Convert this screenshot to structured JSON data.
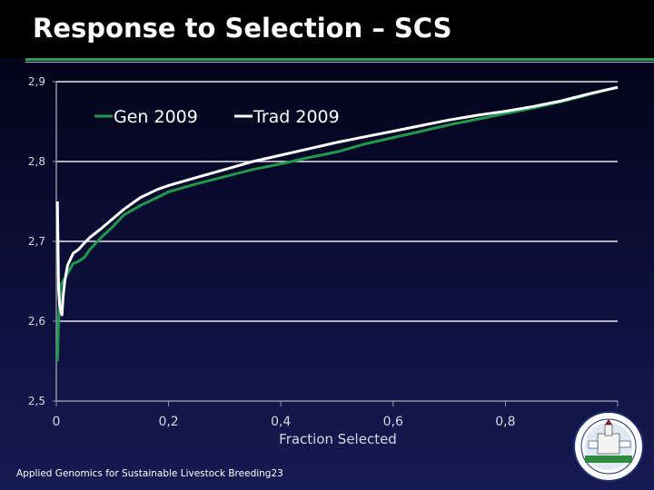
{
  "slide": {
    "title": "Response to Selection – SCS",
    "footer": "Applied Genomics for Sustainable Livestock Breeding",
    "page_number": "23"
  },
  "colors": {
    "gen": "#1f9a4c",
    "trad": "#ffffff",
    "axis": "#8f95a6",
    "grid": "#e6e8ee",
    "tick_text": "#d6d9e0",
    "accent": "#2e9e55"
  },
  "chart_data": {
    "type": "line",
    "title": "",
    "xlabel": "Fraction Selected",
    "ylabel": "",
    "xlim": [
      0,
      1
    ],
    "ylim": [
      2.5,
      2.9
    ],
    "x_ticks": [
      "0",
      "0,2",
      "0,4",
      "0,6",
      "0,8"
    ],
    "x_tick_values": [
      0,
      0.2,
      0.4,
      0.6,
      0.8
    ],
    "y_ticks": [
      "2,5",
      "2,6",
      "2,7",
      "2,8",
      "2,9"
    ],
    "y_tick_values": [
      2.5,
      2.6,
      2.7,
      2.8,
      2.9
    ],
    "grid": "horizontal",
    "legend": "top-left",
    "series": [
      {
        "name": "Gen 2009",
        "x": [
          0.002,
          0.004,
          0.008,
          0.012,
          0.02,
          0.03,
          0.04,
          0.05,
          0.06,
          0.08,
          0.1,
          0.12,
          0.15,
          0.18,
          0.2,
          0.25,
          0.3,
          0.35,
          0.4,
          0.45,
          0.5,
          0.55,
          0.6,
          0.65,
          0.7,
          0.75,
          0.8,
          0.85,
          0.9,
          0.95,
          1.0
        ],
        "y": [
          2.55,
          2.6,
          2.645,
          2.65,
          2.66,
          2.672,
          2.675,
          2.68,
          2.69,
          2.705,
          2.718,
          2.733,
          2.745,
          2.755,
          2.762,
          2.772,
          2.781,
          2.79,
          2.797,
          2.805,
          2.812,
          2.822,
          2.83,
          2.838,
          2.846,
          2.853,
          2.86,
          2.867,
          2.875,
          2.884,
          2.893
        ]
      },
      {
        "name": "Trad 2009",
        "x": [
          0.002,
          0.004,
          0.006,
          0.008,
          0.01,
          0.012,
          0.015,
          0.02,
          0.03,
          0.04,
          0.05,
          0.06,
          0.08,
          0.1,
          0.12,
          0.15,
          0.18,
          0.2,
          0.25,
          0.3,
          0.35,
          0.4,
          0.45,
          0.5,
          0.55,
          0.6,
          0.65,
          0.7,
          0.75,
          0.8,
          0.85,
          0.9,
          0.95,
          1.0
        ],
        "y": [
          2.75,
          2.64,
          2.62,
          2.612,
          2.608,
          2.63,
          2.65,
          2.67,
          2.685,
          2.69,
          2.698,
          2.705,
          2.716,
          2.728,
          2.74,
          2.755,
          2.765,
          2.77,
          2.78,
          2.79,
          2.8,
          2.808,
          2.816,
          2.824,
          2.831,
          2.838,
          2.845,
          2.852,
          2.858,
          2.863,
          2.869,
          2.876,
          2.885,
          2.893
        ]
      }
    ]
  }
}
